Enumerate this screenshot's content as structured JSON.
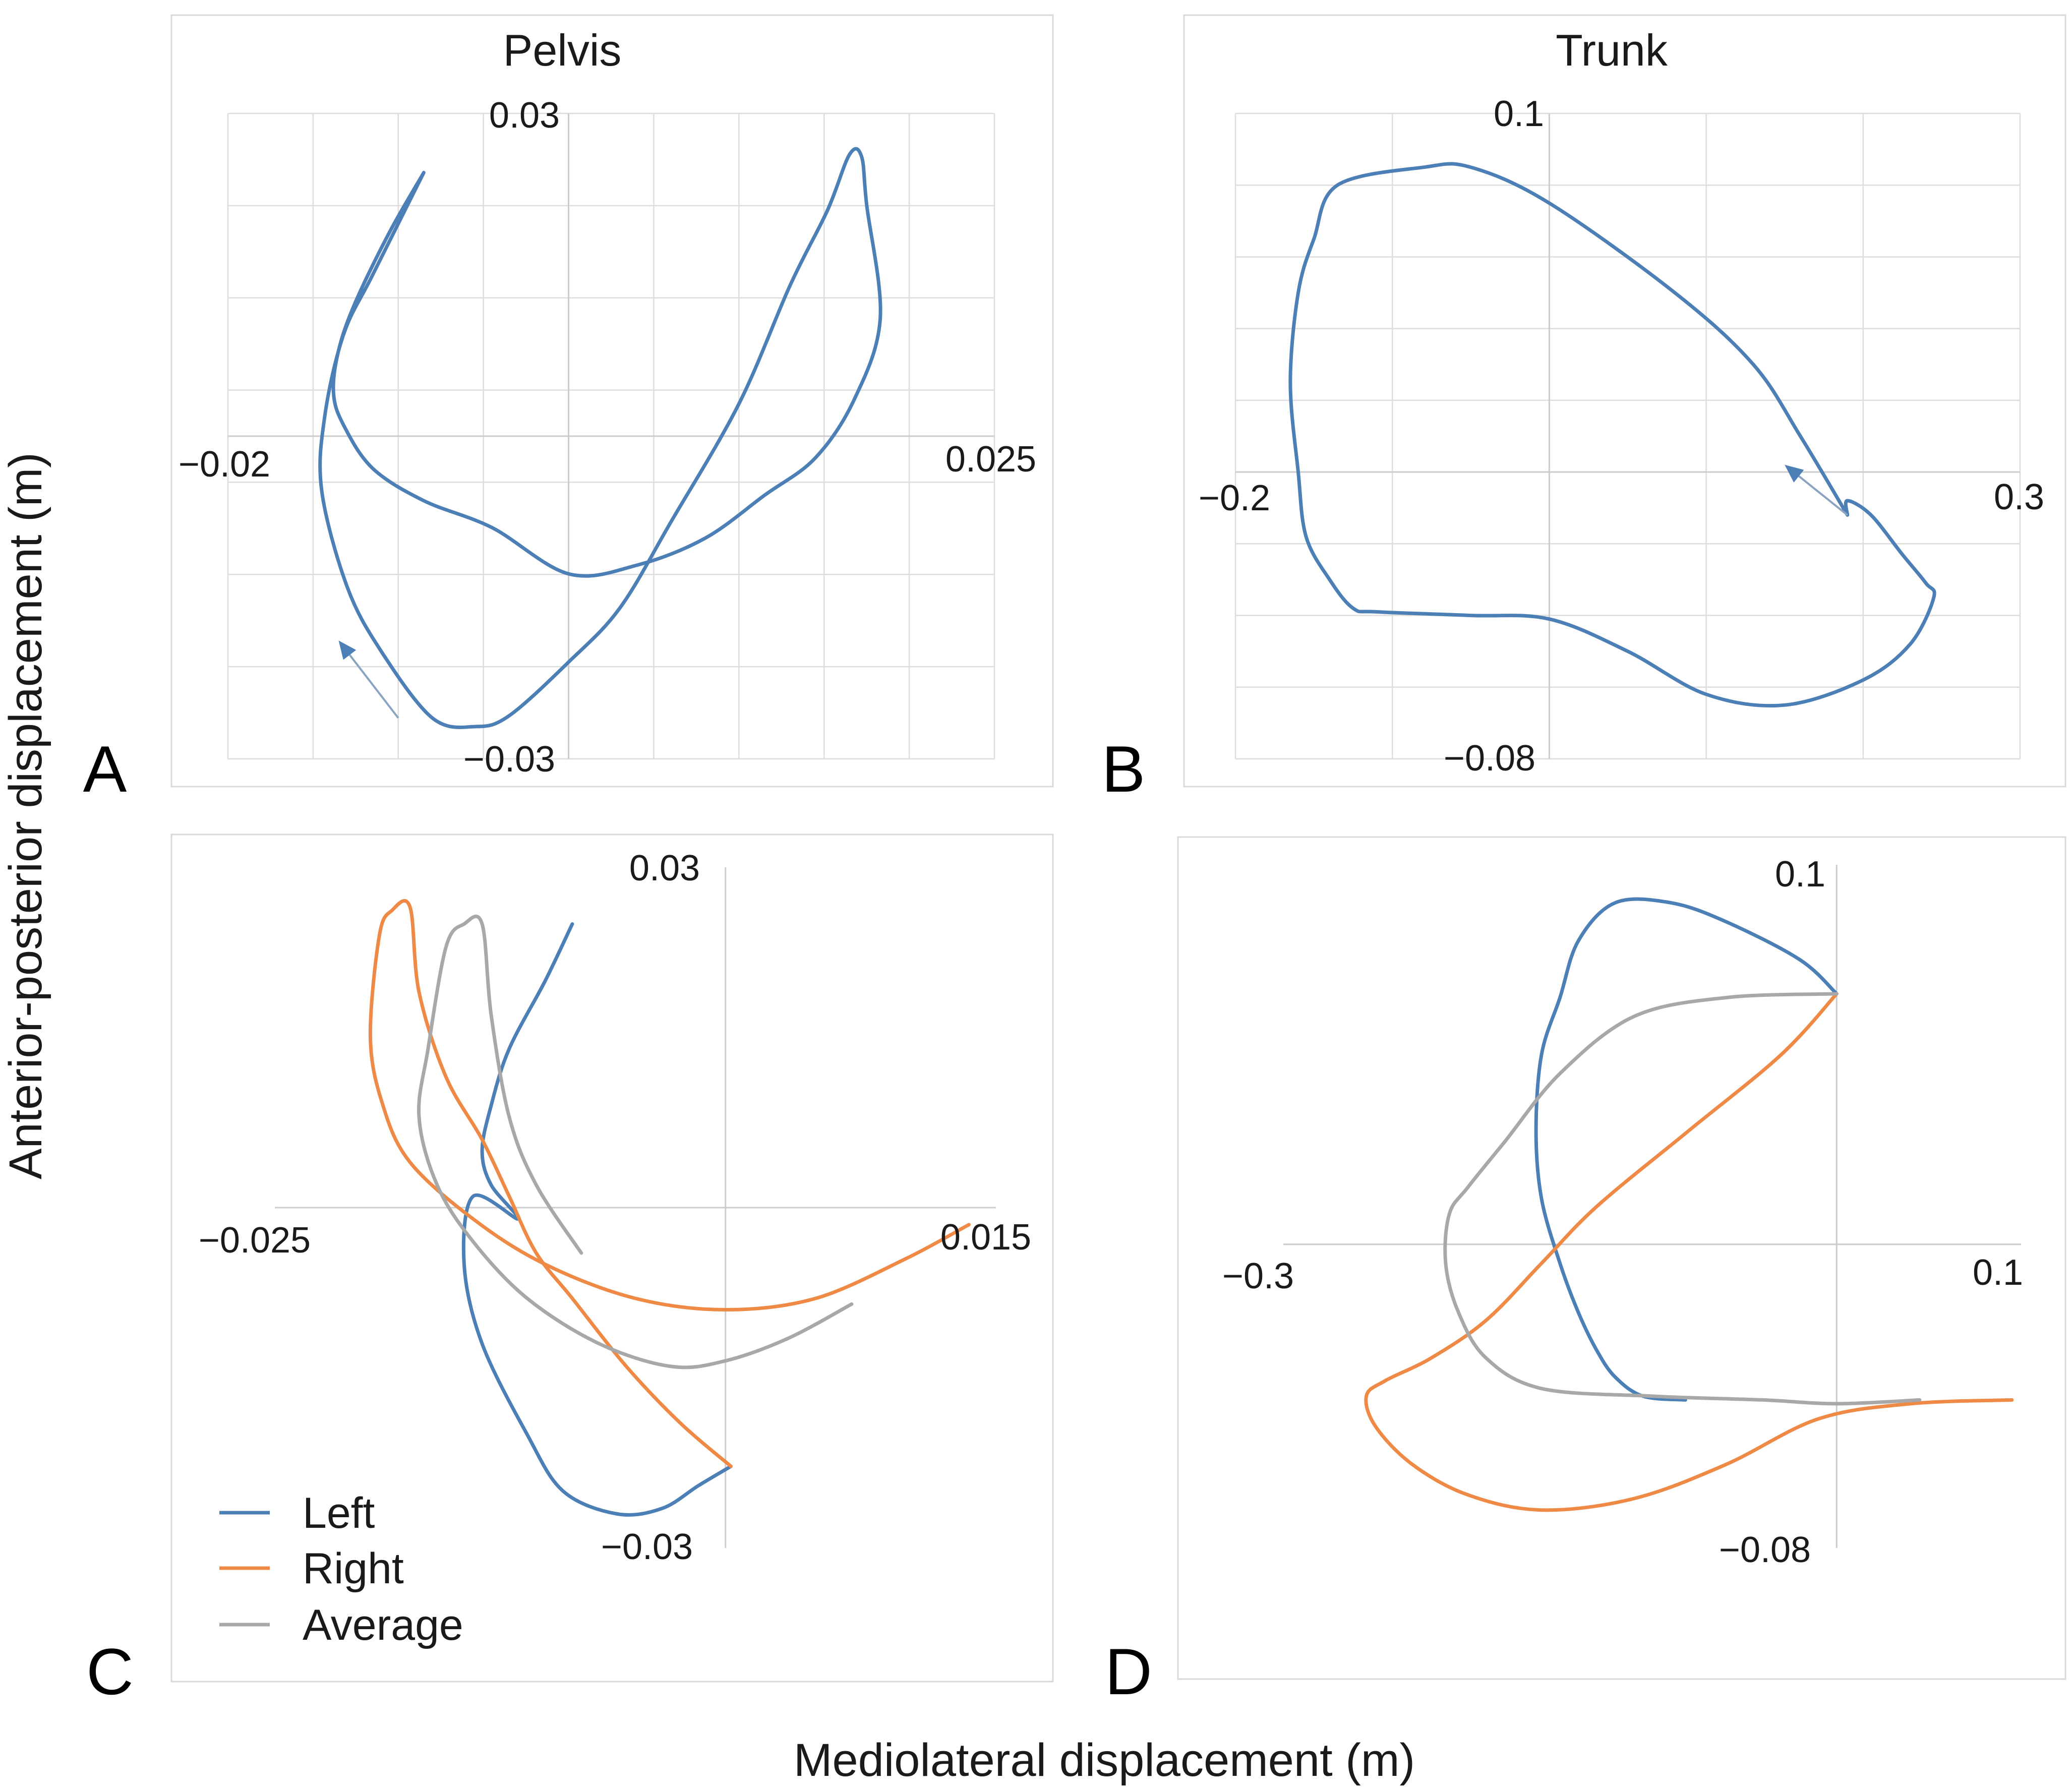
{
  "figure": {
    "x_axis_title": "Mediolateral displacement (m)",
    "y_axis_title": "Anterior-posterior displacement (m)"
  },
  "colors": {
    "left": "#4c7fb5",
    "right": "#ee8a45",
    "average": "#a8a8a8",
    "arrow": "#8aa3c2"
  },
  "chart_data": [
    {
      "id": "A",
      "panel_label": "A",
      "type": "line",
      "title": "Pelvis",
      "xlabel": "Mediolateral displacement (m)",
      "ylabel": "Anterior-posterior displacement (m)",
      "xlim": [
        -0.02,
        0.025
      ],
      "ylim": [
        -0.03,
        0.03
      ],
      "grid": true,
      "tick_labels": {
        "x_min": "−0.02",
        "x_max": "0.025",
        "y_max": "0.03",
        "y_min": "−0.03"
      },
      "series": [
        {
          "name": "Left",
          "color_key": "left",
          "points": [
            [
              -0.0085,
              0.0245
            ],
            [
              -0.0105,
              0.019
            ],
            [
              -0.0125,
              0.0125
            ],
            [
              -0.0135,
              0.008
            ],
            [
              -0.0138,
              0.004
            ],
            [
              -0.0132,
              0.001
            ],
            [
              -0.0115,
              -0.003
            ],
            [
              -0.0085,
              -0.006
            ],
            [
              -0.0045,
              -0.0085
            ],
            [
              0.0,
              -0.0128
            ],
            [
              0.004,
              -0.012
            ],
            [
              0.008,
              -0.0095
            ],
            [
              0.0115,
              -0.0055
            ],
            [
              0.0145,
              -0.002
            ],
            [
              0.0168,
              0.0035
            ],
            [
              0.0183,
              0.011
            ],
            [
              0.0175,
              0.0215
            ],
            [
              0.0172,
              0.026
            ],
            [
              0.0165,
              0.0262
            ],
            [
              0.0152,
              0.021
            ],
            [
              0.013,
              0.014
            ],
            [
              0.01,
              0.003
            ],
            [
              0.006,
              -0.008
            ],
            [
              0.003,
              -0.016
            ],
            [
              0.0,
              -0.021
            ],
            [
              -0.0035,
              -0.026
            ],
            [
              -0.0055,
              -0.027
            ],
            [
              -0.008,
              -0.0262
            ],
            [
              -0.011,
              -0.02
            ],
            [
              -0.013,
              -0.014
            ],
            [
              -0.0145,
              -0.005
            ],
            [
              -0.0143,
              0.002
            ],
            [
              -0.0132,
              0.0095
            ],
            [
              -0.0115,
              0.015
            ],
            [
              -0.0085,
              0.0245
            ]
          ]
        }
      ],
      "arrow": {
        "from": [
          -0.01,
          -0.0262
        ],
        "to": [
          -0.0135,
          -0.019
        ]
      }
    },
    {
      "id": "B",
      "panel_label": "B",
      "type": "line",
      "title": "Trunk",
      "xlabel": "Mediolateral displacement (m)",
      "ylabel": "Anterior-posterior displacement (m)",
      "xlim": [
        -0.2,
        0.3
      ],
      "ylim": [
        -0.08,
        0.1
      ],
      "grid": true,
      "tick_labels": {
        "x_min": "−0.2",
        "x_max": "0.3",
        "y_max": "0.1",
        "y_min": "−0.08"
      },
      "series": [
        {
          "name": "Left",
          "color_key": "left",
          "points": [
            [
              0.19,
              -0.012
            ],
            [
              0.16,
              0.01
            ],
            [
              0.13,
              0.03
            ],
            [
              0.08,
              0.05
            ],
            [
              0.0,
              0.075
            ],
            [
              -0.05,
              0.085
            ],
            [
              -0.08,
              0.085
            ],
            [
              -0.135,
              0.08
            ],
            [
              -0.15,
              0.065
            ],
            [
              -0.16,
              0.05
            ],
            [
              -0.165,
              0.025
            ],
            [
              -0.16,
              0.0
            ],
            [
              -0.155,
              -0.018
            ],
            [
              -0.14,
              -0.03
            ],
            [
              -0.125,
              -0.038
            ],
            [
              -0.11,
              -0.039
            ],
            [
              -0.05,
              -0.04
            ],
            [
              0.0,
              -0.041
            ],
            [
              0.05,
              -0.05
            ],
            [
              0.1,
              -0.062
            ],
            [
              0.15,
              -0.065
            ],
            [
              0.2,
              -0.058
            ],
            [
              0.23,
              -0.048
            ],
            [
              0.245,
              -0.035
            ],
            [
              0.24,
              -0.031
            ],
            [
              0.225,
              -0.023
            ],
            [
              0.205,
              -0.012
            ],
            [
              0.19,
              -0.008
            ],
            [
              0.19,
              -0.012
            ]
          ]
        }
      ],
      "arrow": {
        "from": [
          0.19,
          -0.012
        ],
        "to": [
          0.15,
          0.002
        ]
      }
    },
    {
      "id": "C",
      "panel_label": "C",
      "type": "line",
      "title": "",
      "xlabel": "Mediolateral displacement (m)",
      "ylabel": "Anterior-posterior displacement (m)",
      "xlim": [
        -0.025,
        0.015
      ],
      "ylim": [
        -0.03,
        0.03
      ],
      "grid": false,
      "tick_labels": {
        "x_min": "−0.025",
        "x_max": "0.015",
        "y_max": "0.03",
        "y_min": "−0.03"
      },
      "series": [
        {
          "name": "Left",
          "color_key": "left",
          "points": [
            [
              -0.0085,
              0.025
            ],
            [
              -0.01,
              0.02
            ],
            [
              -0.012,
              0.014
            ],
            [
              -0.013,
              0.009
            ],
            [
              -0.0135,
              0.005
            ],
            [
              -0.013,
              0.002
            ],
            [
              -0.0115,
              -0.001
            ],
            [
              -0.014,
              0.001
            ],
            [
              -0.0145,
              -0.005
            ],
            [
              -0.0135,
              -0.012
            ],
            [
              -0.011,
              -0.02
            ],
            [
              -0.009,
              -0.025
            ],
            [
              -0.006,
              -0.027
            ],
            [
              -0.0035,
              -0.0265
            ],
            [
              -0.0015,
              -0.0245
            ],
            [
              0.0003,
              -0.0228
            ]
          ]
        },
        {
          "name": "Right",
          "color_key": "right",
          "points": [
            [
              0.0003,
              -0.0228
            ],
            [
              -0.0025,
              -0.019
            ],
            [
              -0.0055,
              -0.014
            ],
            [
              -0.0085,
              -0.008
            ],
            [
              -0.0105,
              -0.004
            ],
            [
              -0.012,
              0.001
            ],
            [
              -0.0135,
              0.006
            ],
            [
              -0.0155,
              0.0115
            ],
            [
              -0.017,
              0.019
            ],
            [
              -0.0175,
              0.0265
            ],
            [
              -0.0185,
              0.0262
            ],
            [
              -0.0192,
              0.024
            ],
            [
              -0.0197,
              0.015
            ],
            [
              -0.019,
              0.009
            ],
            [
              -0.0175,
              0.004
            ],
            [
              -0.014,
              -0.001
            ],
            [
              -0.01,
              -0.005
            ],
            [
              -0.005,
              -0.008
            ],
            [
              0.0,
              -0.009
            ],
            [
              0.005,
              -0.008
            ],
            [
              0.01,
              -0.0045
            ],
            [
              0.0135,
              -0.0015
            ]
          ]
        },
        {
          "name": "Average",
          "color_key": "average",
          "points": [
            [
              -0.008,
              -0.004
            ],
            [
              -0.0105,
              0.002
            ],
            [
              -0.012,
              0.008
            ],
            [
              -0.013,
              0.017
            ],
            [
              -0.0135,
              0.025
            ],
            [
              -0.0145,
              0.025
            ],
            [
              -0.0155,
              0.023
            ],
            [
              -0.0165,
              0.014
            ],
            [
              -0.017,
              0.008
            ],
            [
              -0.016,
              0.002
            ],
            [
              -0.014,
              -0.003
            ],
            [
              -0.011,
              -0.008
            ],
            [
              -0.007,
              -0.012
            ],
            [
              -0.003,
              -0.014
            ],
            [
              0.0,
              -0.0135
            ],
            [
              0.0035,
              -0.0115
            ],
            [
              0.007,
              -0.0085
            ]
          ]
        }
      ],
      "legend": {
        "position": "bottom-left",
        "entries": [
          "Left",
          "Right",
          "Average"
        ]
      }
    },
    {
      "id": "D",
      "panel_label": "D",
      "type": "line",
      "title": "",
      "xlabel": "Mediolateral displacement (m)",
      "ylabel": "Anterior-posterior displacement (m)",
      "xlim": [
        -0.3,
        0.1
      ],
      "ylim": [
        -0.08,
        0.1
      ],
      "grid": false,
      "tick_labels": {
        "x_min": "−0.3",
        "x_max": "0.1",
        "y_max": "0.1",
        "y_min": "−0.08"
      },
      "series": [
        {
          "name": "Left",
          "color_key": "left",
          "points": [
            [
              -0.082,
              -0.041
            ],
            [
              -0.105,
              -0.04
            ],
            [
              -0.12,
              -0.035
            ],
            [
              -0.13,
              -0.028
            ],
            [
              -0.14,
              -0.018
            ],
            [
              -0.15,
              -0.005
            ],
            [
              -0.16,
              0.012
            ],
            [
              -0.163,
              0.03
            ],
            [
              -0.16,
              0.05
            ],
            [
              -0.15,
              0.065
            ],
            [
              -0.14,
              0.08
            ],
            [
              -0.12,
              0.09
            ],
            [
              -0.09,
              0.09
            ],
            [
              -0.06,
              0.085
            ],
            [
              -0.02,
              0.075
            ],
            [
              0.0,
              0.066
            ]
          ]
        },
        {
          "name": "Right",
          "color_key": "right",
          "points": [
            [
              0.0,
              0.066
            ],
            [
              -0.03,
              0.05
            ],
            [
              -0.08,
              0.03
            ],
            [
              -0.13,
              0.01
            ],
            [
              -0.16,
              -0.005
            ],
            [
              -0.19,
              -0.02
            ],
            [
              -0.22,
              -0.03
            ],
            [
              -0.245,
              -0.036
            ],
            [
              -0.255,
              -0.04
            ],
            [
              -0.25,
              -0.048
            ],
            [
              -0.23,
              -0.058
            ],
            [
              -0.2,
              -0.066
            ],
            [
              -0.16,
              -0.07
            ],
            [
              -0.11,
              -0.067
            ],
            [
              -0.06,
              -0.058
            ],
            [
              -0.01,
              -0.046
            ],
            [
              0.04,
              -0.042
            ],
            [
              0.095,
              -0.041
            ]
          ]
        },
        {
          "name": "Average",
          "color_key": "average",
          "points": [
            [
              0.0,
              0.066
            ],
            [
              -0.06,
              0.065
            ],
            [
              -0.11,
              0.06
            ],
            [
              -0.15,
              0.045
            ],
            [
              -0.18,
              0.027
            ],
            [
              -0.2,
              0.015
            ],
            [
              -0.21,
              0.008
            ],
            [
              -0.212,
              -0.005
            ],
            [
              -0.205,
              -0.018
            ],
            [
              -0.19,
              -0.03
            ],
            [
              -0.16,
              -0.038
            ],
            [
              -0.1,
              -0.04
            ],
            [
              -0.04,
              -0.041
            ],
            [
              0.0,
              -0.042
            ],
            [
              0.045,
              -0.041
            ]
          ]
        }
      ]
    }
  ]
}
